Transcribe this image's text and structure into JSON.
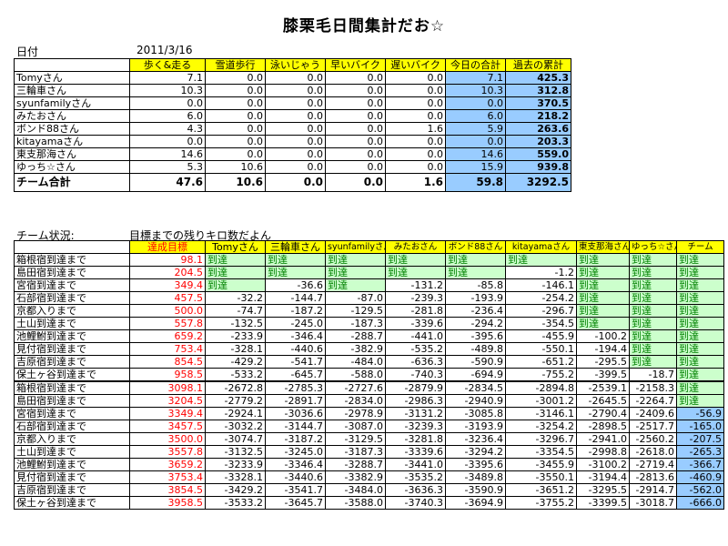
{
  "title": "膝栗毛日間集計だお☆",
  "date_label": "日付",
  "date_value": "2011/3/16",
  "top": {
    "headers": [
      "",
      "歩く&走る",
      "雪道歩行",
      "泳いじゃう",
      "早いバイク",
      "遅いバイク",
      "今日の合計",
      "過去の累計"
    ],
    "rows": [
      [
        "Tomyさん",
        "7.1",
        "0.0",
        "0.0",
        "0.0",
        "0.0",
        "7.1",
        "425.3"
      ],
      [
        "三輪車さん",
        "10.3",
        "0.0",
        "0.0",
        "0.0",
        "0.0",
        "10.3",
        "312.8"
      ],
      [
        "syunfamilyさん",
        "0.0",
        "0.0",
        "0.0",
        "0.0",
        "0.0",
        "0.0",
        "370.5"
      ],
      [
        "みたおさん",
        "6.0",
        "0.0",
        "0.0",
        "0.0",
        "0.0",
        "6.0",
        "218.2"
      ],
      [
        "ボンド88さん",
        "4.3",
        "0.0",
        "0.0",
        "0.0",
        "1.6",
        "5.9",
        "263.6"
      ],
      [
        "kitayamaさん",
        "0.0",
        "0.0",
        "0.0",
        "0.0",
        "0.0",
        "0.0",
        "203.3"
      ],
      [
        "東支那海さん",
        "14.6",
        "0.0",
        "0.0",
        "0.0",
        "0.0",
        "14.6",
        "559.0"
      ],
      [
        "ゆっち☆さん",
        "5.3",
        "10.6",
        "0.0",
        "0.0",
        "0.0",
        "15.9",
        "939.8"
      ]
    ],
    "total": [
      "チーム合計",
      "47.6",
      "10.6",
      "0.0",
      "0.0",
      "1.6",
      "59.8",
      "3292.5"
    ]
  },
  "status_label": "チーム状況:",
  "status_note": "目標までの残りキロ数だよん",
  "bottom": {
    "headers": [
      "",
      "達成目標",
      "Tomyさん",
      "三輪車さん",
      "syunfamilyさん",
      "みたおさん",
      "ボンド88さん",
      "kitayamaさん",
      "東支那海さん",
      "ゆっち☆さん",
      "チーム"
    ],
    "rows": [
      [
        "箱根宿到達まで",
        "98.1",
        "到達",
        "到達",
        "到達",
        "到達",
        "到達",
        "到達",
        "到達",
        "到達",
        "到達"
      ],
      [
        "島田宿到達まで",
        "204.5",
        "到達",
        "到達",
        "到達",
        "到達",
        "到達",
        "-1.2",
        "到達",
        "到達",
        "到達"
      ],
      [
        "宮宿到達まで",
        "349.4",
        "到達",
        "-36.6",
        "到達",
        "-131.2",
        "-85.8",
        "-146.1",
        "到達",
        "到達",
        "到達"
      ],
      [
        "石部宿到達まで",
        "457.5",
        "-32.2",
        "-144.7",
        "-87.0",
        "-239.3",
        "-193.9",
        "-254.2",
        "到達",
        "到達",
        "到達"
      ],
      [
        "京都入りまで",
        "500.0",
        "-74.7",
        "-187.2",
        "-129.5",
        "-281.8",
        "-236.4",
        "-296.7",
        "到達",
        "到達",
        "到達"
      ],
      [
        "土山到達まで",
        "557.8",
        "-132.5",
        "-245.0",
        "-187.3",
        "-339.6",
        "-294.2",
        "-354.5",
        "到達",
        "到達",
        "到達"
      ],
      [
        "池鯉鮒到達まで",
        "659.2",
        "-233.9",
        "-346.4",
        "-288.7",
        "-441.0",
        "-395.6",
        "-455.9",
        "-100.2",
        "到達",
        "到達"
      ],
      [
        "見付宿到達まで",
        "753.4",
        "-328.1",
        "-440.6",
        "-382.9",
        "-535.2",
        "-489.8",
        "-550.1",
        "-194.4",
        "到達",
        "到達"
      ],
      [
        "吉原宿到達まで",
        "854.5",
        "-429.2",
        "-541.7",
        "-484.0",
        "-636.3",
        "-590.9",
        "-651.2",
        "-295.5",
        "到達",
        "到達"
      ],
      [
        "保土ヶ谷到達まで",
        "958.5",
        "-533.2",
        "-645.7",
        "-588.0",
        "-740.3",
        "-694.9",
        "-755.2",
        "-399.5",
        "-18.7",
        "到達"
      ],
      [
        "箱根宿到達まで",
        "3098.1",
        "-2672.8",
        "-2785.3",
        "-2727.6",
        "-2879.9",
        "-2834.5",
        "-2894.8",
        "-2539.1",
        "-2158.3",
        "到達"
      ],
      [
        "島田宿到達まで",
        "3204.5",
        "-2779.2",
        "-2891.7",
        "-2834.0",
        "-2986.3",
        "-2940.9",
        "-3001.2",
        "-2645.5",
        "-2264.7",
        "到達"
      ],
      [
        "宮宿到達まで",
        "3349.4",
        "-2924.1",
        "-3036.6",
        "-2978.9",
        "-3131.2",
        "-3085.8",
        "-3146.1",
        "-2790.4",
        "-2409.6",
        "-56.9"
      ],
      [
        "石部宿到達まで",
        "3457.5",
        "-3032.2",
        "-3144.7",
        "-3087.0",
        "-3239.3",
        "-3193.9",
        "-3254.2",
        "-2898.5",
        "-2517.7",
        "-165.0"
      ],
      [
        "京都入りまで",
        "3500.0",
        "-3074.7",
        "-3187.2",
        "-3129.5",
        "-3281.8",
        "-3236.4",
        "-3296.7",
        "-2941.0",
        "-2560.2",
        "-207.5"
      ],
      [
        "土山到達まで",
        "3557.8",
        "-3132.5",
        "-3245.0",
        "-3187.3",
        "-3339.6",
        "-3294.2",
        "-3354.5",
        "-2998.8",
        "-2618.0",
        "-265.3"
      ],
      [
        "池鯉鮒到達まで",
        "3659.2",
        "-3233.9",
        "-3346.4",
        "-3288.7",
        "-3441.0",
        "-3395.6",
        "-3455.9",
        "-3100.2",
        "-2719.4",
        "-366.7"
      ],
      [
        "見付宿到達まで",
        "3753.4",
        "-3328.1",
        "-3440.6",
        "-3382.9",
        "-3535.2",
        "-3489.8",
        "-3550.1",
        "-3194.4",
        "-2813.6",
        "-460.9"
      ],
      [
        "吉原宿到達まで",
        "3854.5",
        "-3429.2",
        "-3541.7",
        "-3484.0",
        "-3636.3",
        "-3590.9",
        "-3651.2",
        "-3295.5",
        "-2914.7",
        "-562.0"
      ],
      [
        "保土ヶ谷到達まで",
        "3958.5",
        "-3533.2",
        "-3645.7",
        "-3588.0",
        "-3740.3",
        "-3694.9",
        "-3755.2",
        "-3399.5",
        "-3018.7",
        "-666.0"
      ]
    ]
  },
  "colors": {
    "header_yellow": "#ffff00",
    "reached_green": "#ccffcc",
    "reached_text": "#008000",
    "sum_blue": "#99ccff",
    "target_red": "#ff0000"
  }
}
